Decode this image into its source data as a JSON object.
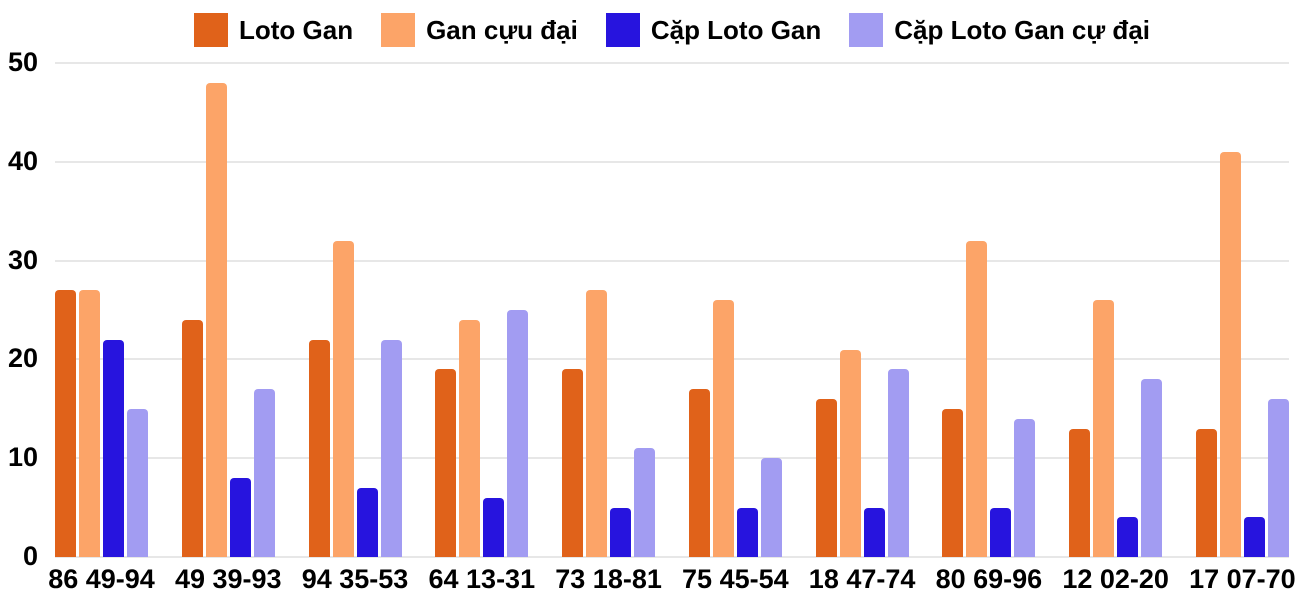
{
  "chart_data": {
    "type": "bar",
    "title": "",
    "xlabel": "",
    "ylabel": "",
    "legend_position": "top",
    "grid": true,
    "gridline_color": "#E7E7E7",
    "text_color": "#000000",
    "background_color": "#FFFFFF",
    "y_axis": {
      "min": 0,
      "max": 50,
      "tick_step": 10,
      "tick_labels": [
        "0",
        "10",
        "20",
        "30",
        "40",
        "50"
      ]
    },
    "categories": [
      "86 49-94",
      "49 39-93",
      "94 35-53",
      "64 13-31",
      "73 18-81",
      "75 45-54",
      "18 47-74",
      "80 69-96",
      "12 02-20",
      "17 07-70"
    ],
    "series": [
      {
        "name": "Loto Gan",
        "slug": "loto-gan",
        "color": "#E0621A",
        "values": [
          27,
          24,
          22,
          19,
          19,
          17,
          16,
          15,
          13,
          13
        ]
      },
      {
        "name": "Gan cựu đại",
        "slug": "gan-cuu-dai",
        "color": "#FCA468",
        "values": [
          27,
          48,
          32,
          24,
          27,
          26,
          21,
          32,
          26,
          41
        ]
      },
      {
        "name": "Cặp Loto Gan",
        "slug": "cap-loto-gan",
        "color": "#2714DE",
        "values": [
          22,
          8,
          7,
          6,
          5,
          5,
          5,
          5,
          4,
          4
        ]
      },
      {
        "name": "Cặp Loto Gan cự đại",
        "slug": "cap-loto-gan-cu-dai",
        "color": "#A29CF2",
        "values": [
          15,
          17,
          22,
          25,
          11,
          10,
          19,
          14,
          18,
          16
        ]
      }
    ]
  }
}
